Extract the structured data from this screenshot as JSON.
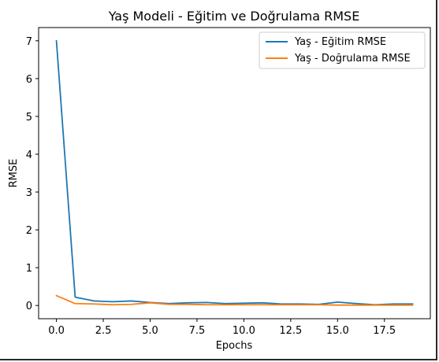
{
  "chart_data": {
    "type": "line",
    "title": "Yaş Modeli - Eğitim ve Doğrulama RMSE",
    "xlabel": "Epochs",
    "ylabel": "RMSE",
    "xlim": [
      -0.95,
      19.95
    ],
    "ylim": [
      -0.35,
      7.35
    ],
    "xticks": [
      0.0,
      2.5,
      5.0,
      7.5,
      10.0,
      12.5,
      15.0,
      17.5
    ],
    "xtick_labels": [
      "0.0",
      "2.5",
      "5.0",
      "7.5",
      "10.0",
      "12.5",
      "15.0",
      "17.5"
    ],
    "yticks": [
      0,
      1,
      2,
      3,
      4,
      5,
      6,
      7
    ],
    "ytick_labels": [
      "0",
      "1",
      "2",
      "3",
      "4",
      "5",
      "6",
      "7"
    ],
    "grid": false,
    "legend_position": "top-right",
    "x": [
      0,
      1,
      2,
      3,
      4,
      5,
      6,
      7,
      8,
      9,
      10,
      11,
      12,
      13,
      14,
      15,
      16,
      17,
      18,
      19
    ],
    "series": [
      {
        "name": "Yaş - Eğitim RMSE",
        "color": "#1f77b4",
        "values": [
          7.0,
          0.22,
          0.12,
          0.1,
          0.12,
          0.08,
          0.05,
          0.07,
          0.08,
          0.05,
          0.06,
          0.07,
          0.04,
          0.04,
          0.03,
          0.09,
          0.05,
          0.02,
          0.04,
          0.04
        ]
      },
      {
        "name": "Yaş - Doğrulama RMSE",
        "color": "#ff7f0e",
        "values": [
          0.26,
          0.05,
          0.04,
          0.02,
          0.03,
          0.07,
          0.03,
          0.03,
          0.02,
          0.02,
          0.02,
          0.02,
          0.02,
          0.02,
          0.02,
          0.01,
          0.01,
          0.01,
          0.01,
          0.01
        ]
      }
    ]
  }
}
